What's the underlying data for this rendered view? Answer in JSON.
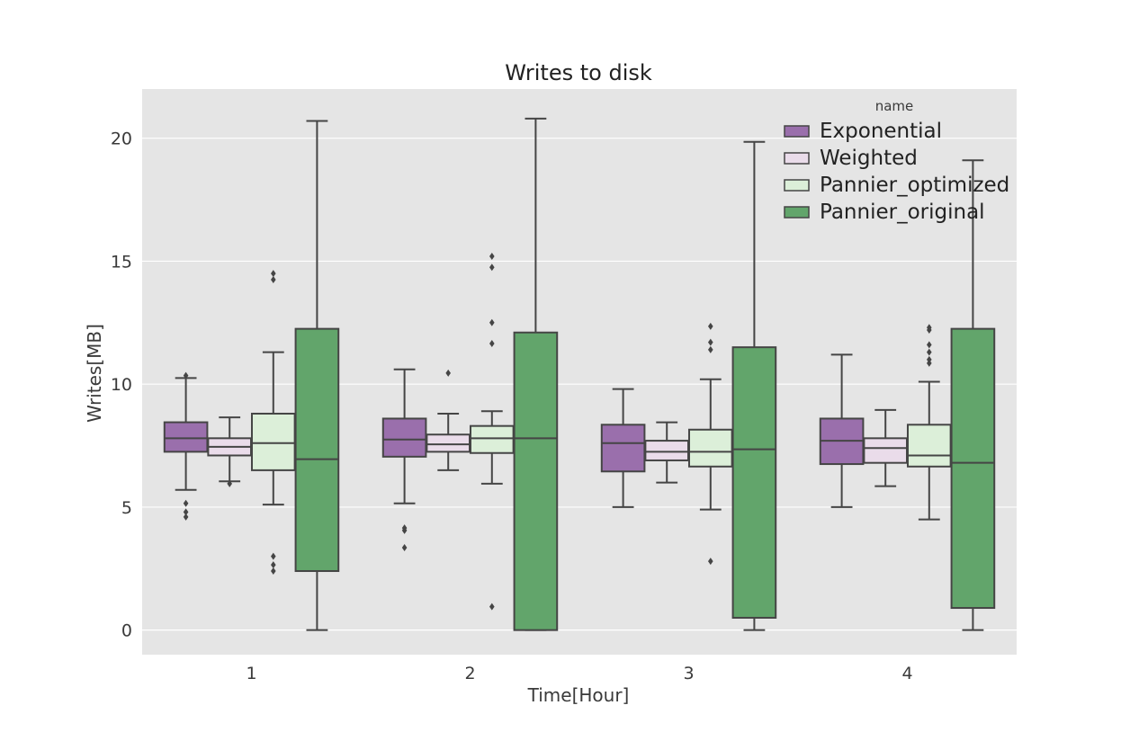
{
  "chart_data": {
    "type": "box",
    "title": "Writes to disk",
    "xlabel": "Time[Hour]",
    "ylabel": "Writes[MB]",
    "categories": [
      "1",
      "2",
      "3",
      "4"
    ],
    "ylim": [
      -1,
      22
    ],
    "yticks": [
      0,
      5,
      10,
      15,
      20
    ],
    "grid": true,
    "legend": {
      "title": "name",
      "position": "top-right"
    },
    "series": [
      {
        "name": "Exponential",
        "color": "#9a6fac",
        "boxes": [
          {
            "min": 5.7,
            "q1": 7.25,
            "median": 7.8,
            "q3": 8.45,
            "max": 10.25,
            "outliers": [
              10.35,
              5.15,
              4.8,
              4.6
            ]
          },
          {
            "min": 5.15,
            "q1": 7.05,
            "median": 7.75,
            "q3": 8.6,
            "max": 10.6,
            "outliers": [
              4.15,
              4.05,
              3.35
            ]
          },
          {
            "min": 5.0,
            "q1": 6.45,
            "median": 7.6,
            "q3": 8.35,
            "max": 9.8,
            "outliers": []
          },
          {
            "min": 5.0,
            "q1": 6.75,
            "median": 7.7,
            "q3": 8.6,
            "max": 11.2,
            "outliers": []
          }
        ]
      },
      {
        "name": "Weighted",
        "color": "#eadcea",
        "boxes": [
          {
            "min": 6.05,
            "q1": 7.1,
            "median": 7.45,
            "q3": 7.8,
            "max": 8.65,
            "outliers": [
              5.95
            ]
          },
          {
            "min": 6.5,
            "q1": 7.25,
            "median": 7.55,
            "q3": 7.95,
            "max": 8.8,
            "outliers": [
              10.45
            ]
          },
          {
            "min": 6.0,
            "q1": 6.9,
            "median": 7.25,
            "q3": 7.7,
            "max": 8.45,
            "outliers": []
          },
          {
            "min": 5.85,
            "q1": 6.8,
            "median": 7.4,
            "q3": 7.8,
            "max": 8.95,
            "outliers": []
          }
        ]
      },
      {
        "name": "Pannier_optimized",
        "color": "#dcefd9",
        "boxes": [
          {
            "min": 5.1,
            "q1": 6.5,
            "median": 7.6,
            "q3": 8.8,
            "max": 11.3,
            "outliers": [
              14.5,
              14.25,
              3.0,
              2.65,
              2.4
            ]
          },
          {
            "min": 5.95,
            "q1": 7.2,
            "median": 7.8,
            "q3": 8.3,
            "max": 8.9,
            "outliers": [
              15.2,
              14.75,
              12.5,
              11.65,
              0.95
            ]
          },
          {
            "min": 4.9,
            "q1": 6.65,
            "median": 7.25,
            "q3": 8.15,
            "max": 10.2,
            "outliers": [
              12.35,
              11.7,
              11.4,
              2.8
            ]
          },
          {
            "min": 4.5,
            "q1": 6.65,
            "median": 7.1,
            "q3": 8.35,
            "max": 10.1,
            "outliers": [
              12.3,
              12.2,
              11.6,
              11.3,
              11.0,
              10.85
            ]
          }
        ]
      },
      {
        "name": "Pannier_original",
        "color": "#62a56b",
        "boxes": [
          {
            "min": 0.0,
            "q1": 2.4,
            "median": 6.95,
            "q3": 12.25,
            "max": 20.7,
            "outliers": []
          },
          {
            "min": 0.0,
            "q1": 0.0,
            "median": 7.8,
            "q3": 12.1,
            "max": 20.8,
            "outliers": []
          },
          {
            "min": 0.0,
            "q1": 0.5,
            "median": 7.35,
            "q3": 11.5,
            "max": 19.85,
            "outliers": []
          },
          {
            "min": 0.0,
            "q1": 0.9,
            "median": 6.8,
            "q3": 12.25,
            "max": 19.1,
            "outliers": []
          }
        ]
      }
    ]
  }
}
